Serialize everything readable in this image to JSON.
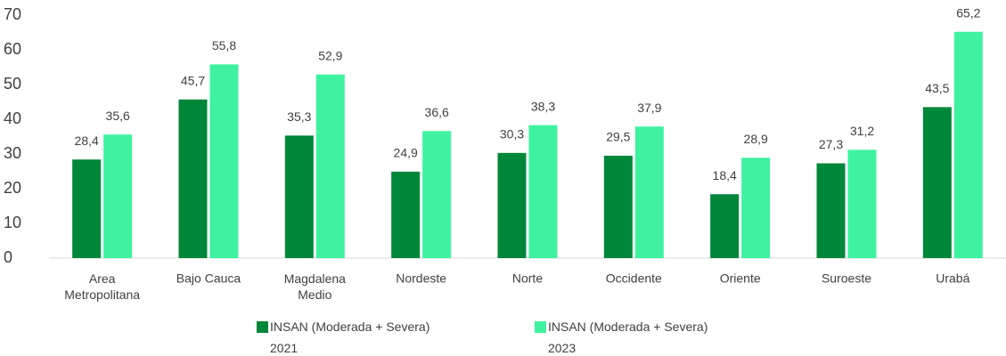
{
  "chart_data": {
    "type": "bar",
    "categories": [
      "Area\nMetropolitana",
      "Bajo Cauca",
      "Magdalena\nMedio",
      "Nordeste",
      "Norte",
      "Occidente",
      "Oriente",
      "Suroeste",
      "Urabá"
    ],
    "series": [
      {
        "name": "INSAN (Moderada + Severa)\n2021",
        "color": "#00873a",
        "values": [
          28.4,
          45.7,
          35.3,
          24.9,
          30.3,
          29.5,
          18.4,
          27.3,
          43.5
        ],
        "value_labels": [
          "28,4",
          "45,7",
          "35,3",
          "24,9",
          "30,3",
          "29,5",
          "18,4",
          "27,3",
          "43,5"
        ]
      },
      {
        "name": "INSAN (Moderada + Severa)\n2023",
        "color": "#3ef2a0",
        "values": [
          35.6,
          55.8,
          52.9,
          36.6,
          38.3,
          37.9,
          28.9,
          31.2,
          65.2
        ],
        "value_labels": [
          "35,6",
          "55,8",
          "52,9",
          "36,6",
          "38,3",
          "37,9",
          "28,9",
          "31,2",
          "65,2"
        ]
      }
    ],
    "ylim": [
      0,
      70
    ],
    "yticks": [
      0,
      10,
      20,
      30,
      40,
      50,
      60,
      70
    ],
    "grid": false,
    "legend": "bottom"
  }
}
